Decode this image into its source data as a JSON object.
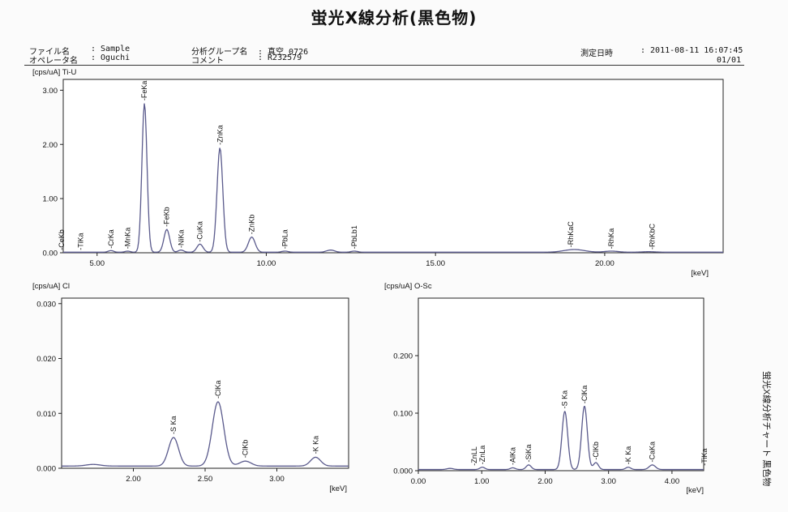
{
  "report": {
    "title": "蛍光X線分析(黒色物)",
    "file_label": "ファイル名",
    "file_value": ": Sample",
    "operator_label": "オペレータ名",
    "operator_value": ": Oguchi",
    "group_label": "分析グループ名",
    "group_value": ": 真空_0726",
    "comment_label": "コメント",
    "comment_value": ": R232579",
    "date_label": "測定日時",
    "date_value": ": 2011-08-11 16:07:45",
    "page": "01/01",
    "side_label": "蛍光X線分析チャート 黒色物"
  },
  "chart_data": [
    {
      "id": "ti-u",
      "type": "line",
      "title": "",
      "ylabel": "[cps/uA] Ti-U",
      "xlabel": "[keV]",
      "xlim": [
        4.0,
        23.5
      ],
      "ylim": [
        0,
        3.2
      ],
      "xticks": [
        5,
        10,
        15,
        20
      ],
      "xtick_labels": [
        "5.00",
        "10.00",
        "15.00",
        "20.00"
      ],
      "yticks": [
        0,
        1,
        2,
        3
      ],
      "ytick_labels": [
        "0.00",
        "1.00",
        "2.00",
        "3.00"
      ],
      "color": "#5a5a8c",
      "baseline": 0.01,
      "peaks": [
        {
          "x": 5.41,
          "h": 0.03,
          "w": 0.08
        },
        {
          "x": 5.9,
          "h": 0.02,
          "w": 0.08
        },
        {
          "x": 6.4,
          "h": 2.75,
          "w": 0.075
        },
        {
          "x": 7.06,
          "h": 0.42,
          "w": 0.085
        },
        {
          "x": 7.48,
          "h": 0.04,
          "w": 0.08
        },
        {
          "x": 8.04,
          "h": 0.15,
          "w": 0.09
        },
        {
          "x": 8.63,
          "h": 1.93,
          "w": 0.085
        },
        {
          "x": 9.57,
          "h": 0.28,
          "w": 0.1
        },
        {
          "x": 10.55,
          "h": 0.02,
          "w": 0.1
        },
        {
          "x": 11.9,
          "h": 0.04,
          "w": 0.12
        },
        {
          "x": 12.6,
          "h": 0.02,
          "w": 0.1
        },
        {
          "x": 19.1,
          "h": 0.05,
          "w": 0.3
        },
        {
          "x": 20.2,
          "h": 0.02,
          "w": 0.2
        },
        {
          "x": 21.3,
          "h": 0.01,
          "w": 0.2
        }
      ],
      "annotations": [
        {
          "label": "CeKb",
          "x": 3.95,
          "y": 0.02
        },
        {
          "label": "TiKa",
          "x": 4.51,
          "y": 0.02
        },
        {
          "label": "CrKa",
          "x": 5.41,
          "y": 0.05
        },
        {
          "label": "MnKa",
          "x": 5.9,
          "y": 0.04
        },
        {
          "label": "FeKa",
          "x": 6.4,
          "y": 2.78
        },
        {
          "label": "FeKb",
          "x": 7.06,
          "y": 0.45
        },
        {
          "label": "NiKa",
          "x": 7.48,
          "y": 0.06
        },
        {
          "label": "CuKa",
          "x": 8.04,
          "y": 0.17
        },
        {
          "label": "ZnKa",
          "x": 8.63,
          "y": 1.96
        },
        {
          "label": "ZnKb",
          "x": 9.57,
          "y": 0.31
        },
        {
          "label": "PbLa",
          "x": 10.55,
          "y": 0.04
        },
        {
          "label": "PbLb1",
          "x": 12.6,
          "y": 0.04
        },
        {
          "label": "RhKaC",
          "x": 19.0,
          "y": 0.07
        },
        {
          "label": "RhKa",
          "x": 20.2,
          "y": 0.04
        },
        {
          "label": "RhKbC",
          "x": 21.4,
          "y": 0.03
        }
      ]
    },
    {
      "id": "cl",
      "type": "line",
      "title": "",
      "ylabel": "[cps/uA] Cl",
      "xlabel": "[keV]",
      "xlim": [
        1.5,
        3.5
      ],
      "ylim": [
        0,
        0.031
      ],
      "xticks": [
        2.0,
        2.5,
        3.0
      ],
      "xtick_labels": [
        "2.00",
        "2.50",
        "3.00"
      ],
      "yticks": [
        0,
        0.01,
        0.02,
        0.03
      ],
      "ytick_labels": [
        "0.000",
        "0.010",
        "0.020",
        "0.030"
      ],
      "color": "#5a5a8c",
      "baseline": 0.0004,
      "peaks": [
        {
          "x": 1.72,
          "h": 0.0003,
          "w": 0.05
        },
        {
          "x": 2.28,
          "h": 0.0052,
          "w": 0.035
        },
        {
          "x": 2.59,
          "h": 0.0117,
          "w": 0.04
        },
        {
          "x": 2.78,
          "h": 0.0009,
          "w": 0.04
        },
        {
          "x": 3.27,
          "h": 0.0016,
          "w": 0.035
        }
      ],
      "annotations": [
        {
          "label": "S Ka",
          "x": 2.28,
          "y": 0.0059
        },
        {
          "label": "ClKa",
          "x": 2.59,
          "y": 0.0124
        },
        {
          "label": "ClKb",
          "x": 2.78,
          "y": 0.0016
        },
        {
          "label": "K Ka",
          "x": 3.27,
          "y": 0.0023
        }
      ]
    },
    {
      "id": "o-sc",
      "type": "line",
      "title": "",
      "ylabel": "[cps/uA] O-Sc",
      "xlabel": "[keV]",
      "xlim": [
        0.0,
        4.5
      ],
      "ylim": [
        0,
        0.3
      ],
      "xticks": [
        0,
        1,
        2,
        3,
        4
      ],
      "xtick_labels": [
        "0.00",
        "1.00",
        "2.00",
        "3.00",
        "4.00"
      ],
      "yticks": [
        0,
        0.1,
        0.2
      ],
      "ytick_labels": [
        "0.000",
        "0.100",
        "0.200"
      ],
      "color": "#5a5a8c",
      "baseline": 0.002,
      "peaks": [
        {
          "x": 0.5,
          "h": 0.002,
          "w": 0.05
        },
        {
          "x": 1.01,
          "h": 0.004,
          "w": 0.04
        },
        {
          "x": 1.49,
          "h": 0.003,
          "w": 0.04
        },
        {
          "x": 1.74,
          "h": 0.008,
          "w": 0.04
        },
        {
          "x": 2.31,
          "h": 0.101,
          "w": 0.045
        },
        {
          "x": 2.62,
          "h": 0.11,
          "w": 0.045
        },
        {
          "x": 2.8,
          "h": 0.012,
          "w": 0.04
        },
        {
          "x": 3.31,
          "h": 0.004,
          "w": 0.04
        },
        {
          "x": 3.69,
          "h": 0.008,
          "w": 0.05
        }
      ],
      "annotations": [
        {
          "label": "ZnLL",
          "x": 0.88,
          "y": 0.006
        },
        {
          "label": "ZnLa",
          "x": 1.01,
          "y": 0.008
        },
        {
          "label": "AlKa",
          "x": 1.49,
          "y": 0.007
        },
        {
          "label": "SiKa",
          "x": 1.74,
          "y": 0.012
        },
        {
          "label": "S Ka",
          "x": 2.31,
          "y": 0.105
        },
        {
          "label": "ClKa",
          "x": 2.62,
          "y": 0.114
        },
        {
          "label": "ClKb",
          "x": 2.8,
          "y": 0.016
        },
        {
          "label": "K Ka",
          "x": 3.31,
          "y": 0.008
        },
        {
          "label": "CaKa",
          "x": 3.69,
          "y": 0.012
        },
        {
          "label": "TiKa",
          "x": 4.51,
          "y": 0.006
        }
      ]
    }
  ]
}
